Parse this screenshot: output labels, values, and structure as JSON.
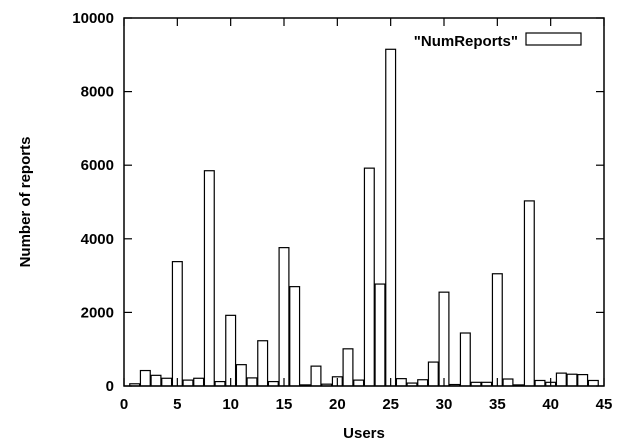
{
  "chart_data": {
    "type": "bar",
    "xlabel": "Users",
    "ylabel": "Number of reports",
    "xlim": [
      0,
      45
    ],
    "ylim": [
      0,
      10000
    ],
    "x_ticks": [
      0,
      5,
      10,
      15,
      20,
      25,
      30,
      35,
      40,
      45
    ],
    "y_ticks": [
      0,
      2000,
      4000,
      6000,
      8000,
      10000
    ],
    "legend_position": "top-right",
    "grid": false,
    "series": [
      {
        "name": "\"NumReports\"",
        "x": [
          1,
          2,
          3,
          4,
          5,
          6,
          7,
          8,
          9,
          10,
          11,
          12,
          13,
          14,
          15,
          16,
          17,
          18,
          19,
          20,
          21,
          22,
          23,
          24,
          25,
          26,
          27,
          28,
          29,
          30,
          31,
          32,
          33,
          34,
          35,
          36,
          37,
          38,
          39,
          40,
          41,
          42,
          43,
          44
        ],
        "values": [
          60,
          420,
          290,
          210,
          3380,
          160,
          210,
          5850,
          120,
          1920,
          580,
          220,
          1230,
          120,
          3760,
          2700,
          30,
          540,
          50,
          250,
          1010,
          160,
          5920,
          2770,
          9150,
          200,
          80,
          170,
          650,
          2550,
          40,
          1440,
          100,
          100,
          3050,
          190,
          30,
          5030,
          150,
          100,
          350,
          320,
          310,
          150
        ]
      }
    ],
    "colors": {
      "bar_fill": "#ffffff",
      "bar_stroke": "#000000",
      "axis": "#000000"
    }
  }
}
